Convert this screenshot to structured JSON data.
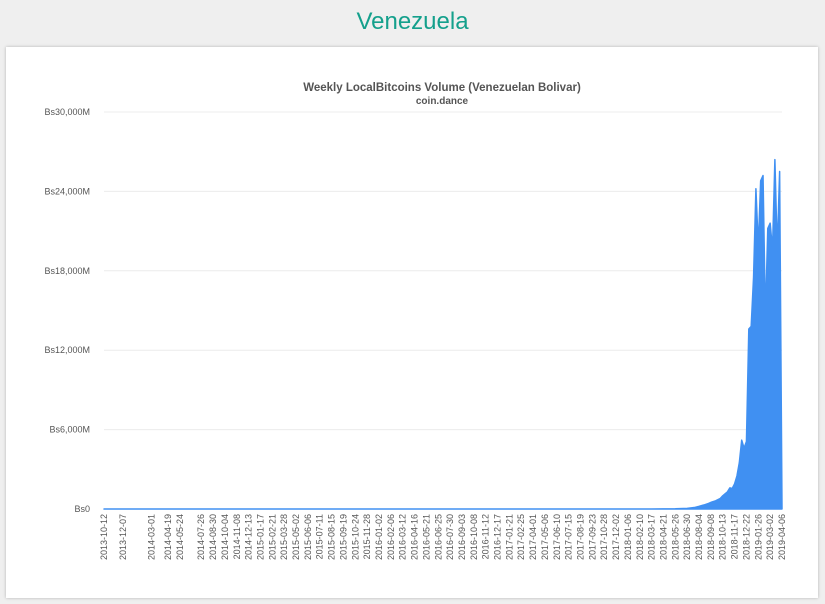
{
  "page": {
    "heading": "Venezuela"
  },
  "colors": {
    "heading": "#14a08c",
    "series": "#4090f2",
    "grid": "#ececec",
    "text": "#555555"
  },
  "chart_data": {
    "type": "area",
    "title": "Weekly LocalBitcoins Volume (Venezuelan Bolivar)",
    "subtitle": "coin.dance",
    "ylim": [
      0,
      30000
    ],
    "yunit": "millions of Bs",
    "yticks": [
      {
        "value": 0,
        "label": "Bs0"
      },
      {
        "value": 6000,
        "label": "Bs6,000M"
      },
      {
        "value": 12000,
        "label": "Bs12,000M"
      },
      {
        "value": 18000,
        "label": "Bs18,000M"
      },
      {
        "value": 24000,
        "label": "Bs24,000M"
      },
      {
        "value": 30000,
        "label": "Bs30,000M"
      }
    ],
    "xlim": [
      "2013-10-12",
      "2019-04-06"
    ],
    "xticks": [
      "2013-10-12",
      "2013-12-07",
      "2014-03-01",
      "2014-04-19",
      "2014-05-24",
      "2014-07-26",
      "2014-08-30",
      "2014-10-04",
      "2014-11-08",
      "2014-12-13",
      "2015-01-17",
      "2015-02-21",
      "2015-03-28",
      "2015-05-02",
      "2015-06-06",
      "2015-07-11",
      "2015-08-15",
      "2015-09-19",
      "2015-10-24",
      "2015-11-28",
      "2016-01-02",
      "2016-02-06",
      "2016-03-12",
      "2016-04-16",
      "2016-05-21",
      "2016-06-25",
      "2016-07-30",
      "2016-09-03",
      "2016-10-08",
      "2016-11-12",
      "2016-12-17",
      "2017-01-21",
      "2017-02-25",
      "2017-04-01",
      "2017-05-06",
      "2017-06-10",
      "2017-07-15",
      "2017-08-19",
      "2017-09-23",
      "2017-10-28",
      "2017-12-02",
      "2018-01-06",
      "2018-02-10",
      "2018-03-17",
      "2018-04-21",
      "2018-05-26",
      "2018-06-30",
      "2018-08-04",
      "2018-09-08",
      "2018-10-13",
      "2018-11-17",
      "2018-12-22",
      "2019-01-26",
      "2019-03-02",
      "2019-04-06"
    ],
    "grid": true,
    "legend": "none",
    "series": [
      {
        "points": [
          [
            "2013-10-12",
            0
          ],
          [
            "2018-03-17",
            2
          ],
          [
            "2018-04-21",
            5
          ],
          [
            "2018-05-26",
            15
          ],
          [
            "2018-06-30",
            50
          ],
          [
            "2018-07-21",
            110
          ],
          [
            "2018-08-04",
            200
          ],
          [
            "2018-08-18",
            300
          ],
          [
            "2018-09-01",
            420
          ],
          [
            "2018-09-08",
            500
          ],
          [
            "2018-09-22",
            620
          ],
          [
            "2018-10-06",
            800
          ],
          [
            "2018-10-13",
            1000
          ],
          [
            "2018-10-27",
            1300
          ],
          [
            "2018-11-03",
            1600
          ],
          [
            "2018-11-10",
            1550
          ],
          [
            "2018-11-17",
            1900
          ],
          [
            "2018-11-24",
            2500
          ],
          [
            "2018-12-01",
            3500
          ],
          [
            "2018-12-08",
            5200
          ],
          [
            "2018-12-15",
            4600
          ],
          [
            "2018-12-22",
            5100
          ],
          [
            "2018-12-29",
            13600
          ],
          [
            "2019-01-05",
            13800
          ],
          [
            "2019-01-12",
            17500
          ],
          [
            "2019-01-19",
            24200
          ],
          [
            "2019-01-26",
            19800
          ],
          [
            "2019-02-02",
            24800
          ],
          [
            "2019-02-09",
            25200
          ],
          [
            "2019-02-16",
            14400
          ],
          [
            "2019-02-23",
            21200
          ],
          [
            "2019-03-02",
            21600
          ],
          [
            "2019-03-09",
            19600
          ],
          [
            "2019-03-16",
            26400
          ],
          [
            "2019-03-23",
            19500
          ],
          [
            "2019-03-30",
            25500
          ],
          [
            "2019-04-06",
            0
          ]
        ]
      }
    ]
  }
}
